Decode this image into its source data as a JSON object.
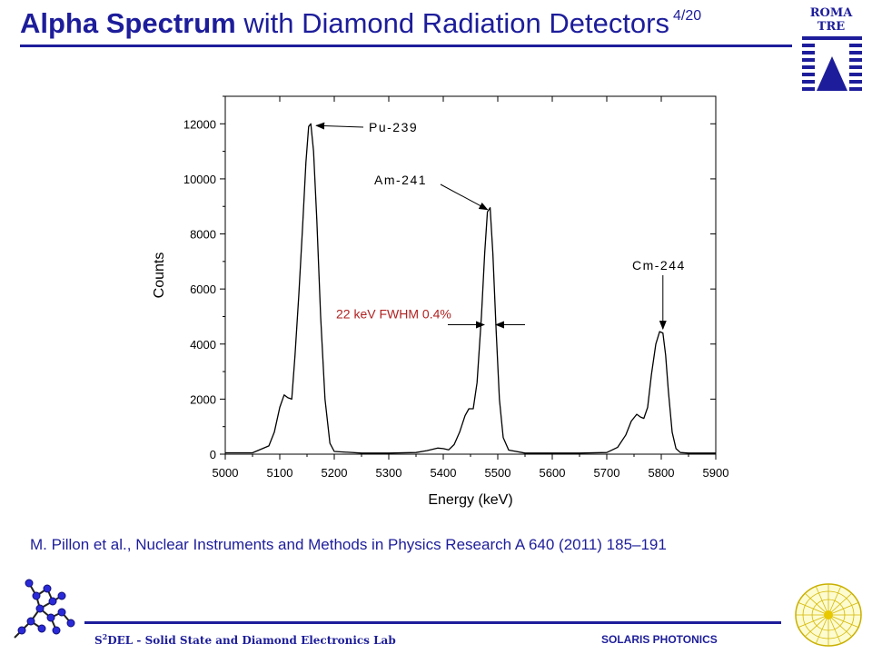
{
  "header": {
    "title_bold": "Alpha Spectrum",
    "title_rest": " with Diamond Radiation Detectors",
    "page_indicator": "4/20"
  },
  "logo": {
    "line1": "ROMA",
    "line2": "TRE"
  },
  "citation": "M. Pillon et al., Nuclear Instruments and Methods in Physics Research A 640 (2011) 185–191",
  "footer": {
    "left_s": "S",
    "left_sup": "2",
    "left_rest": "DEL - Solid State and Diamond Electronics Lab",
    "right": "SOLARIS PHOTONICS"
  },
  "colors": {
    "brand": "#1d1d9b",
    "annotation_red": "#b22222",
    "curve": "#000000"
  },
  "chart_data": {
    "type": "line",
    "xlabel": "Energy (keV)",
    "ylabel": "Counts",
    "xlim": [
      5000,
      5900
    ],
    "ylim": [
      0,
      13000
    ],
    "xticks": [
      5000,
      5100,
      5200,
      5300,
      5400,
      5500,
      5600,
      5700,
      5800,
      5900
    ],
    "yticks": [
      0,
      2000,
      4000,
      6000,
      8000,
      10000,
      12000
    ],
    "grid": false,
    "series": [
      {
        "x": [
          5000,
          5050,
          5080,
          5090,
          5100,
          5108,
          5115,
          5122,
          5128,
          5135,
          5142,
          5148,
          5153,
          5157,
          5162,
          5168,
          5175,
          5183,
          5192,
          5200,
          5250,
          5300,
          5350,
          5370,
          5390,
          5400,
          5410,
          5420,
          5430,
          5440,
          5447,
          5455,
          5462,
          5470,
          5476,
          5481,
          5486,
          5491,
          5497,
          5503,
          5510,
          5520,
          5550,
          5600,
          5650,
          5700,
          5720,
          5735,
          5745,
          5755,
          5762,
          5768,
          5775,
          5782,
          5790,
          5797,
          5803,
          5808,
          5813,
          5820,
          5827,
          5835,
          5850,
          5900
        ],
        "y": [
          50,
          50,
          300,
          800,
          1700,
          2150,
          2050,
          2000,
          3600,
          5800,
          8300,
          10600,
          11900,
          12000,
          11000,
          8500,
          5000,
          2000,
          400,
          100,
          40,
          40,
          60,
          130,
          220,
          200,
          160,
          350,
          800,
          1400,
          1650,
          1650,
          2600,
          5000,
          7300,
          8800,
          8950,
          7300,
          4500,
          2000,
          600,
          150,
          40,
          40,
          40,
          60,
          250,
          700,
          1200,
          1450,
          1350,
          1300,
          1700,
          2900,
          4000,
          4450,
          4400,
          3600,
          2300,
          800,
          200,
          60,
          40,
          40
        ]
      }
    ],
    "annotations": [
      {
        "text": "Pu-239",
        "x": 5157,
        "y": 12000
      },
      {
        "text": "Am-241",
        "x": 5486,
        "y": 8950
      },
      {
        "text": "Cm-244",
        "x": 5803,
        "y": 4450
      },
      {
        "text": "22 keV FWHM 0.4%",
        "x": 5486,
        "y": 4700
      }
    ]
  }
}
